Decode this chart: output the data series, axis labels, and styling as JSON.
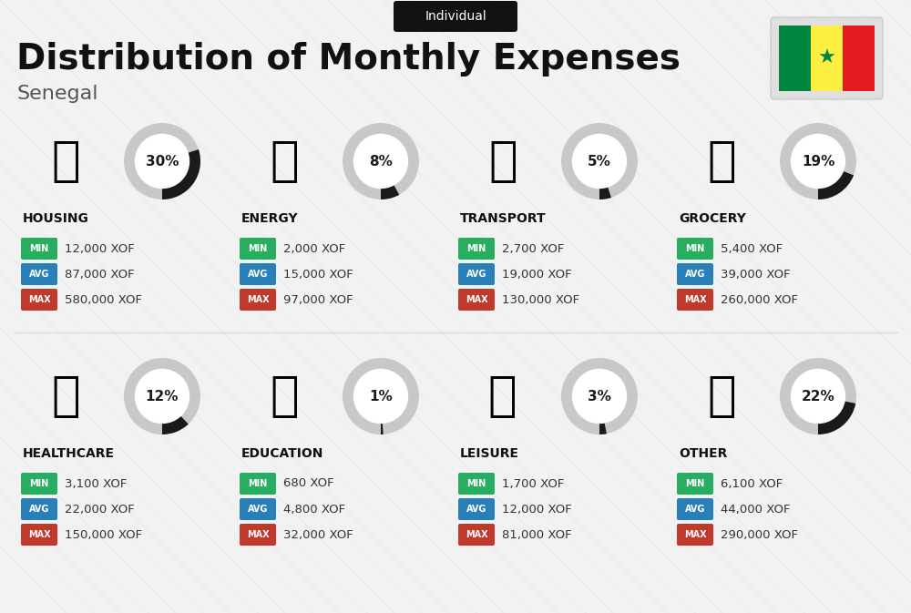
{
  "title": "Distribution of Monthly Expenses",
  "subtitle": "Individual",
  "country": "Senegal",
  "background_color": "#f2f2f2",
  "categories": [
    {
      "name": "HOUSING",
      "percent": 30,
      "min": "12,000 XOF",
      "avg": "87,000 XOF",
      "max": "580,000 XOF",
      "row": 0,
      "col": 0
    },
    {
      "name": "ENERGY",
      "percent": 8,
      "min": "2,000 XOF",
      "avg": "15,000 XOF",
      "max": "97,000 XOF",
      "row": 0,
      "col": 1
    },
    {
      "name": "TRANSPORT",
      "percent": 5,
      "min": "2,700 XOF",
      "avg": "19,000 XOF",
      "max": "130,000 XOF",
      "row": 0,
      "col": 2
    },
    {
      "name": "GROCERY",
      "percent": 19,
      "min": "5,400 XOF",
      "avg": "39,000 XOF",
      "max": "260,000 XOF",
      "row": 0,
      "col": 3
    },
    {
      "name": "HEALTHCARE",
      "percent": 12,
      "min": "3,100 XOF",
      "avg": "22,000 XOF",
      "max": "150,000 XOF",
      "row": 1,
      "col": 0
    },
    {
      "name": "EDUCATION",
      "percent": 1,
      "min": "680 XOF",
      "avg": "4,800 XOF",
      "max": "32,000 XOF",
      "row": 1,
      "col": 1
    },
    {
      "name": "LEISURE",
      "percent": 3,
      "min": "1,700 XOF",
      "avg": "12,000 XOF",
      "max": "81,000 XOF",
      "row": 1,
      "col": 2
    },
    {
      "name": "OTHER",
      "percent": 22,
      "min": "6,100 XOF",
      "avg": "44,000 XOF",
      "max": "290,000 XOF",
      "row": 1,
      "col": 3
    }
  ],
  "min_color": "#27ae60",
  "avg_color": "#2980b9",
  "max_color": "#c0392b",
  "arc_filled_color": "#1a1a1a",
  "arc_empty_color": "#c8c8c8",
  "arc_bg_color": "#ffffff",
  "category_name_color": "#111111",
  "value_text_color": "#333333",
  "senegal_green": "#00853F",
  "senegal_yellow": "#FDEF42",
  "senegal_red": "#E31B23",
  "pill_bg": "#111111",
  "title_color": "#111111",
  "subtitle_color": "#555555"
}
